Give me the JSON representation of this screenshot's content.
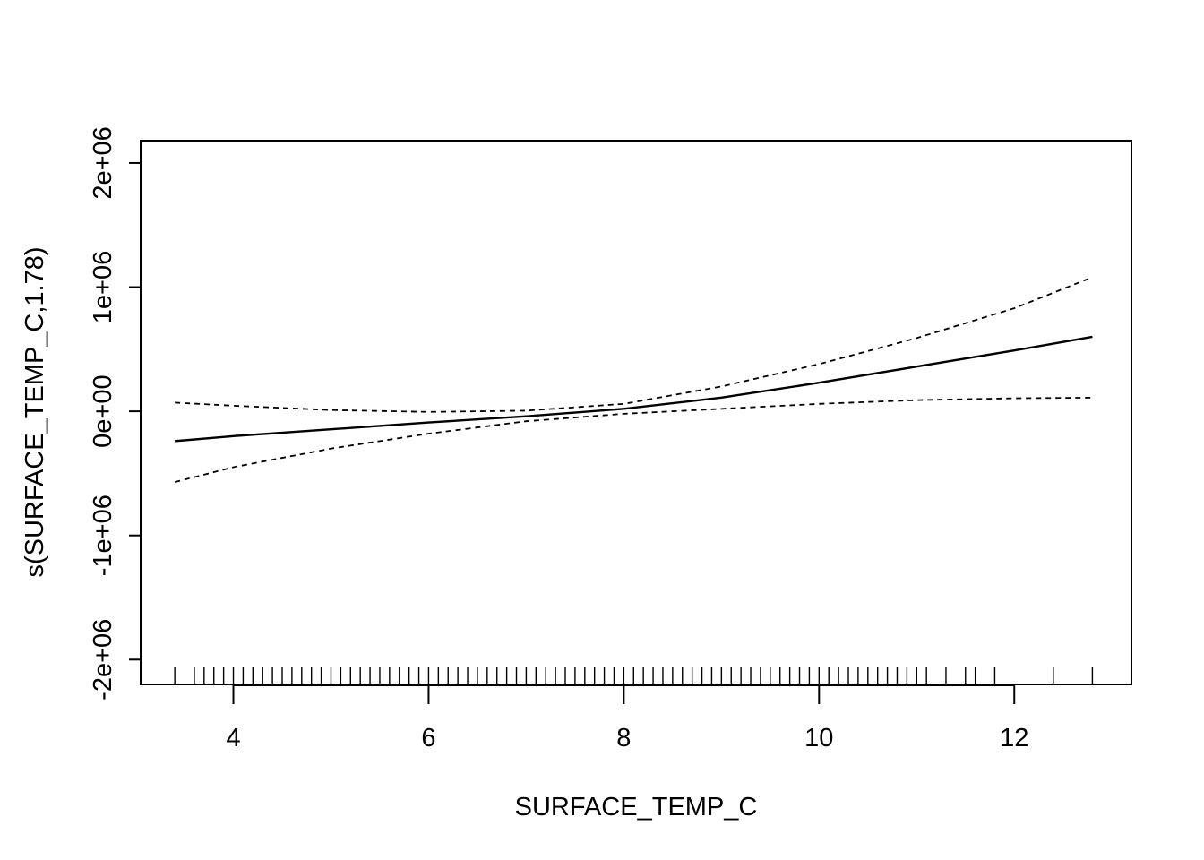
{
  "chart_data": {
    "type": "line",
    "title": "",
    "xlabel": "SURFACE_TEMP_C",
    "ylabel": "s(SURFACE_TEMP_C,1.78)",
    "xlim": [
      3.05,
      13.2
    ],
    "ylim": [
      -2200000,
      2180000
    ],
    "x_ticks": [
      4,
      6,
      8,
      10,
      12
    ],
    "x_tick_labels": [
      "4",
      "6",
      "8",
      "10",
      "12"
    ],
    "y_ticks": [
      -2000000,
      -1000000,
      0,
      1000000,
      2000000
    ],
    "y_tick_labels": [
      "-2e+06",
      "-1e+06",
      "0e+00",
      "1e+06",
      "2e+06"
    ],
    "grid": false,
    "legend": "none",
    "series": [
      {
        "style": "solid",
        "x": [
          3.4,
          4.0,
          5.0,
          6.0,
          7.0,
          8.0,
          9.0,
          10.0,
          11.0,
          12.0,
          12.8
        ],
        "y": [
          -240000,
          -200000,
          -145000,
          -90000,
          -40000,
          20000,
          110000,
          230000,
          360000,
          490000,
          600000
        ]
      },
      {
        "style": "dashed",
        "x": [
          3.4,
          4.0,
          5.0,
          6.0,
          7.0,
          8.0,
          9.0,
          10.0,
          11.0,
          12.0,
          12.8
        ],
        "y": [
          70000,
          45000,
          10000,
          -5000,
          5000,
          60000,
          200000,
          380000,
          590000,
          830000,
          1080000
        ]
      },
      {
        "style": "dashed",
        "x": [
          3.4,
          4.0,
          5.0,
          6.0,
          7.0,
          8.0,
          9.0,
          10.0,
          11.0,
          12.0,
          12.8
        ],
        "y": [
          -570000,
          -450000,
          -300000,
          -180000,
          -80000,
          -20000,
          20000,
          60000,
          90000,
          105000,
          110000
        ]
      }
    ],
    "rug": [
      3.4,
      3.6,
      3.7,
      3.8,
      3.9,
      4.0,
      4.1,
      4.2,
      4.3,
      4.4,
      4.5,
      4.6,
      4.7,
      4.8,
      4.9,
      5.0,
      5.1,
      5.2,
      5.3,
      5.4,
      5.5,
      5.6,
      5.7,
      5.8,
      5.9,
      6.0,
      6.1,
      6.2,
      6.3,
      6.4,
      6.5,
      6.6,
      6.7,
      6.8,
      6.9,
      7.0,
      7.1,
      7.2,
      7.3,
      7.4,
      7.5,
      7.6,
      7.7,
      7.8,
      7.9,
      8.0,
      8.1,
      8.2,
      8.3,
      8.4,
      8.5,
      8.6,
      8.7,
      8.8,
      8.9,
      9.0,
      9.1,
      9.2,
      9.3,
      9.4,
      9.5,
      9.6,
      9.7,
      9.8,
      9.9,
      10.0,
      10.1,
      10.2,
      10.3,
      10.4,
      10.5,
      10.6,
      10.7,
      10.8,
      10.9,
      11.0,
      11.1,
      11.3,
      11.5,
      11.6,
      11.8,
      12.4,
      12.8
    ]
  }
}
